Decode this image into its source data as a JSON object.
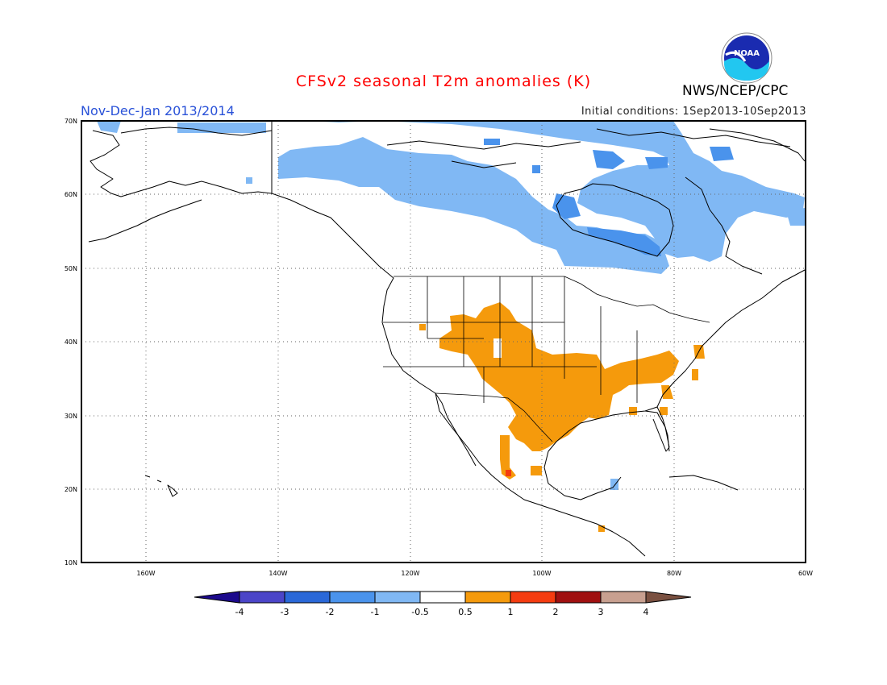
{
  "header": {
    "title": "CFSv2 seasonal T2m anomalies (K)",
    "period": "Nov-Dec-Jan 2013/2014",
    "initial_conditions": "Initial conditions: 1Sep2013-10Sep2013",
    "agency": "NWS/NCEP/CPC",
    "logo_text": "NOAA"
  },
  "map": {
    "lat_labels": [
      "70N",
      "60N",
      "50N",
      "40N",
      "30N",
      "20N",
      "10N"
    ],
    "lon_labels": [
      "160W",
      "140W",
      "120W",
      "100W",
      "80W",
      "60W"
    ],
    "grid": "dotted",
    "anomaly_regions": [
      {
        "region": "northern Canada",
        "category": "-1 to -0.5"
      },
      {
        "region": "Hudson Bay / Quebec / Labrador",
        "category": "-2 to -1"
      },
      {
        "region": "south-central and southern United States",
        "category": "0.5 to 1"
      },
      {
        "region": "western Mexico coast",
        "category": "1 to 2"
      }
    ]
  },
  "colorbar": {
    "labels": [
      "-4",
      "-3",
      "-2",
      "-1",
      "-0.5",
      "0.5",
      "1",
      "2",
      "3",
      "4"
    ],
    "colors": [
      "#1c0a8c",
      "#4b45c8",
      "#2a68d8",
      "#4a93ec",
      "#80b8f4",
      "#ffffff",
      "#f59a0c",
      "#f53c10",
      "#a01010",
      "#c8a090",
      "#7a5040"
    ]
  },
  "colors": {
    "title": "#ff0000",
    "period": "#2a52d8",
    "coast": "#000000",
    "cool_light": "#80b8f4",
    "cool_mid": "#4a93ec",
    "warm": "#f59a0c",
    "hot": "#f53c10"
  }
}
